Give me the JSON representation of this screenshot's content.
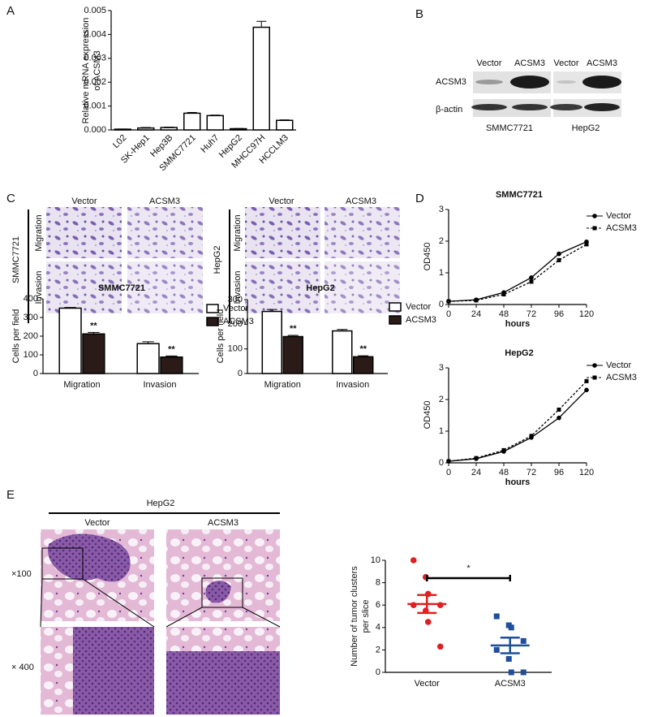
{
  "figure": {
    "panels": [
      "A",
      "B",
      "C",
      "D",
      "E"
    ],
    "blot": {
      "lanes": [
        "Vector",
        "ACSM3",
        "Vector",
        "ACSM3"
      ],
      "rows": [
        "ACSM3",
        "β-actin"
      ],
      "cells": [
        "SMMC7721",
        "HepG2"
      ]
    },
    "micrographs": {
      "columns": [
        "Vector",
        "ACSM3"
      ],
      "rows": [
        "Migration",
        "Invasion"
      ],
      "cells": [
        "SMMC7721",
        "HepG2"
      ]
    },
    "histology": {
      "cell": "HepG2",
      "columns": [
        "Vector",
        "ACSM3"
      ],
      "rows": [
        "×100",
        "× 400"
      ]
    }
  },
  "chart_data": [
    {
      "type": "bar",
      "ylabel": [
        "Relative mRNA expression",
        "of ACSM3"
      ],
      "categories": [
        "L02",
        "SK-Hep1",
        "Hep3B",
        "SMMC7721",
        "Huh7",
        "HepG2",
        "MHCC97H",
        "HCCLM3"
      ],
      "values": [
        3e-05,
        8e-05,
        0.0001,
        0.0007,
        0.0006,
        5e-05,
        0.0043,
        0.0004
      ],
      "errors": [
        1e-05,
        2e-05,
        2e-05,
        3e-05,
        2e-05,
        1e-05,
        0.00025,
        2e-05
      ],
      "color": "#ffffff",
      "edgecolor": "#000000",
      "ylim": [
        0,
        0.005
      ],
      "yticks": [
        {
          "value": 0,
          "label": "0.000"
        },
        0.001,
        0.002,
        0.003,
        0.004,
        0.005
      ]
    },
    {
      "type": "bar",
      "title": "SMMC7721",
      "ylabel": "Cells per field",
      "categories": [
        "Migration",
        "Invasion"
      ],
      "series": [
        {
          "name": "Vector",
          "color": "#ffffff",
          "values": [
            350,
            160
          ],
          "errors": [
            4,
            10
          ]
        },
        {
          "name": "ACSM3",
          "color": "#2b1b18",
          "values": [
            212,
            88
          ],
          "errors": [
            8,
            6
          ],
          "significance": [
            "**",
            "**"
          ]
        }
      ],
      "edgecolor": "#000000",
      "ylim": [
        0,
        400
      ],
      "yticks": [
        0,
        100,
        200,
        300,
        400
      ]
    },
    {
      "type": "bar",
      "title": "HepG2",
      "ylabel": "Cells per field",
      "categories": [
        "Migration",
        "Invasion"
      ],
      "series": [
        {
          "name": "Vector",
          "color": "#ffffff",
          "values": [
            252,
            173
          ],
          "errors": [
            8,
            6
          ]
        },
        {
          "name": "ACSM3",
          "color": "#2b1b18",
          "values": [
            150,
            68
          ],
          "errors": [
            5,
            4
          ],
          "significance": [
            "**",
            "**"
          ]
        }
      ],
      "edgecolor": "#000000",
      "ylim": [
        0,
        300
      ],
      "yticks": [
        0,
        100,
        200,
        300
      ]
    },
    {
      "type": "line",
      "title": "SMMC7721",
      "xlabel": "hours",
      "ylabel": "OD450",
      "x": [
        0,
        24,
        48,
        72,
        96,
        120
      ],
      "series": [
        {
          "name": "Vector",
          "color": "#000000",
          "marker": "circle",
          "linestyle": "solid",
          "values": [
            0.1,
            0.15,
            0.38,
            0.85,
            1.6,
            1.98
          ]
        },
        {
          "name": "ACSM3",
          "color": "#000000",
          "marker": "square",
          "linestyle": "dashed",
          "values": [
            0.1,
            0.13,
            0.32,
            0.72,
            1.4,
            1.9
          ]
        }
      ],
      "xlim": [
        0,
        120
      ],
      "xticks": [
        0,
        24,
        48,
        72,
        96,
        120
      ],
      "ylim": [
        0,
        3
      ],
      "yticks": [
        0,
        1,
        2,
        3
      ]
    },
    {
      "type": "line",
      "title": "HepG2",
      "xlabel": "hours",
      "ylabel": "OD450",
      "x": [
        0,
        24,
        48,
        72,
        96,
        120
      ],
      "series": [
        {
          "name": "Vector",
          "color": "#000000",
          "marker": "circle",
          "linestyle": "solid",
          "values": [
            0.05,
            0.13,
            0.36,
            0.8,
            1.42,
            2.3
          ]
        },
        {
          "name": "ACSM3",
          "color": "#000000",
          "marker": "square",
          "linestyle": "dashed",
          "values": [
            0.05,
            0.15,
            0.4,
            0.85,
            1.68,
            2.58
          ]
        }
      ],
      "xlim": [
        0,
        120
      ],
      "xticks": [
        0,
        24,
        48,
        72,
        96,
        120
      ],
      "ylim": [
        0,
        3
      ],
      "yticks": [
        0,
        1,
        2,
        3
      ]
    },
    {
      "type": "scatter",
      "ylabel": [
        "Number of tumor clusters",
        "per slice"
      ],
      "significance": "*",
      "series": [
        {
          "name": "Vector",
          "color": "#e02020",
          "marker": "circle",
          "values": [
            10,
            8.5,
            7,
            6,
            6,
            5.5,
            4.5,
            2.3
          ],
          "mean": 6.1,
          "sem": 0.8
        },
        {
          "name": "ACSM3",
          "color": "#1f4e9c",
          "marker": "square",
          "values": [
            5,
            4.2,
            4,
            2.8,
            2,
            1.2,
            0,
            0
          ],
          "mean": 2.4,
          "sem": 0.7
        }
      ],
      "ylim": [
        0,
        10
      ],
      "yticks": [
        0,
        2,
        4,
        6,
        8,
        10
      ]
    }
  ]
}
